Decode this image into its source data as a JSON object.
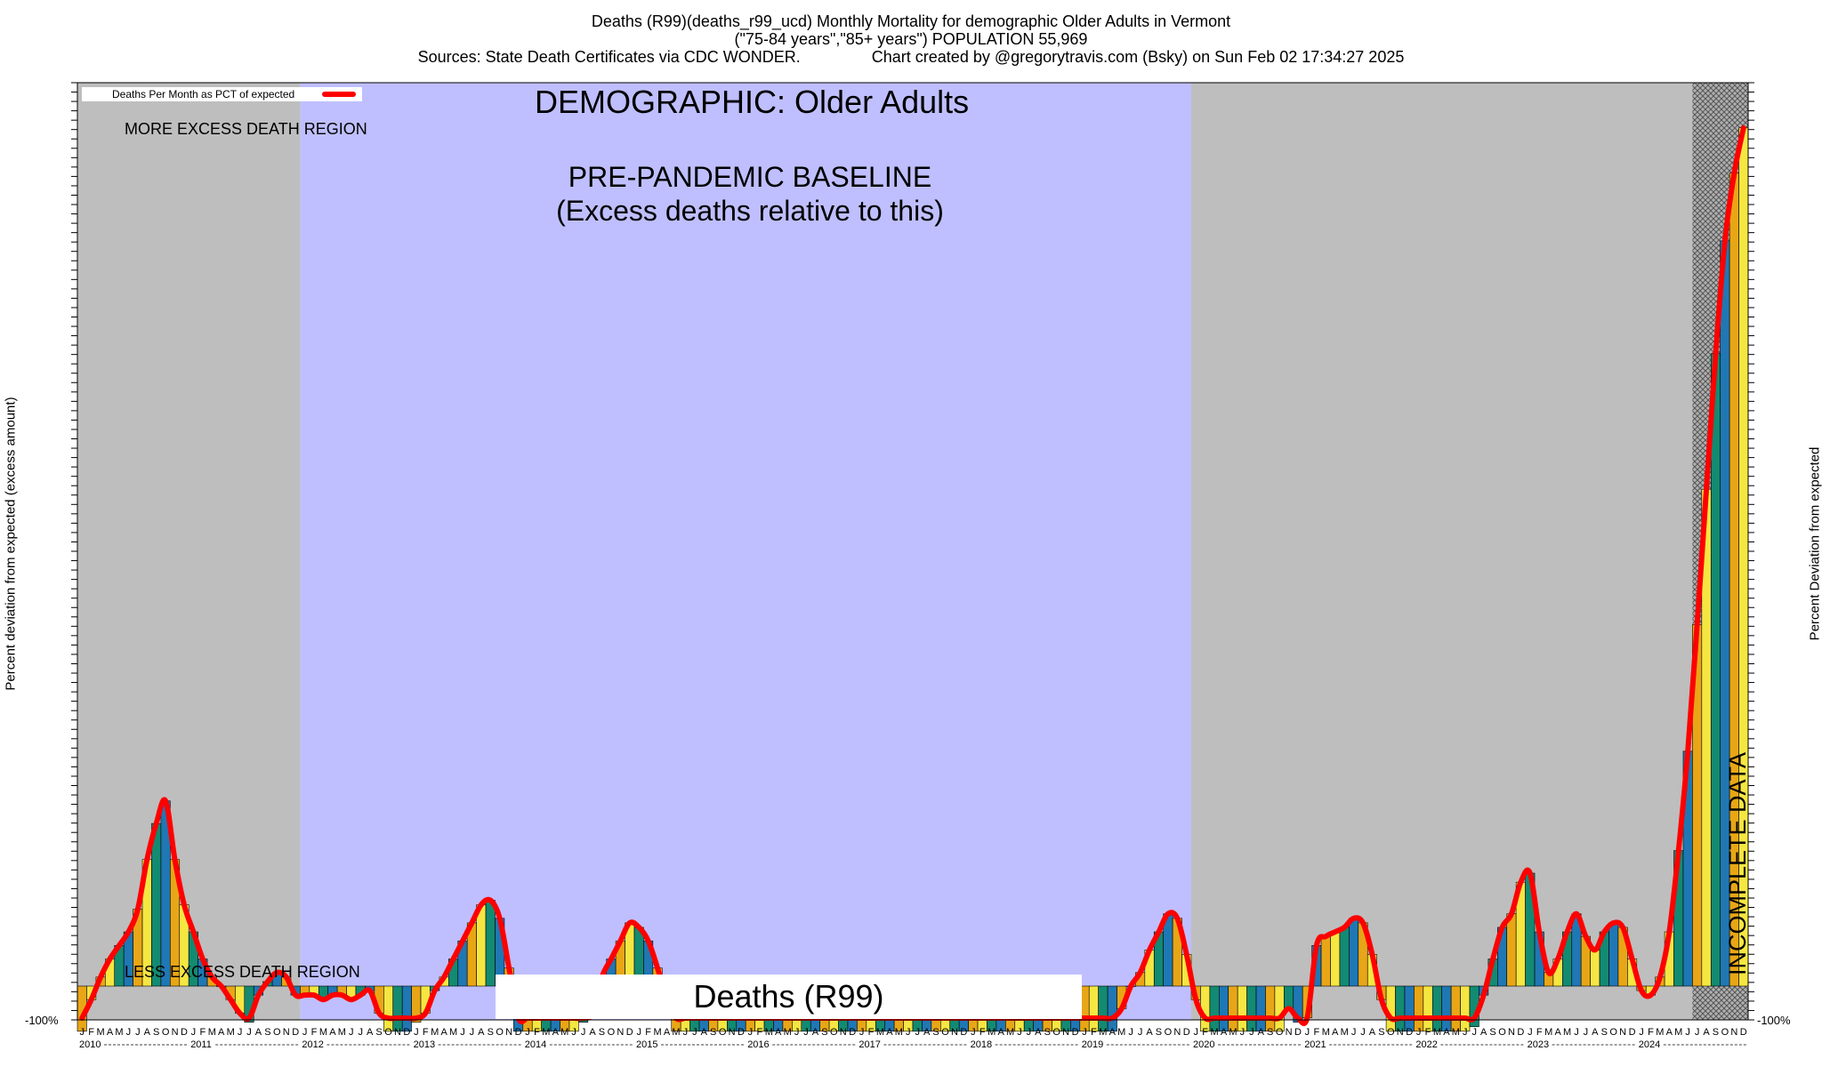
{
  "header": {
    "line1": "Deaths (R99)(deaths_r99_ucd) Monthly Mortality for demographic Older Adults in Vermont",
    "line2": "(\"75-84 years\",\"85+ years\") POPULATION 55,969",
    "line3": "Sources: State Death Certificates via CDC WONDER.                Chart created by @gregorytravis.com (Bsky) on Sun Feb 02 17:34:27 2025"
  },
  "axes": {
    "left_label": "Percent deviation from expected (excess amount)",
    "right_label": "Percent Deviation from expected",
    "bottom_tick": "-100%",
    "right_bottom_tick": "-100%"
  },
  "legend": {
    "label": "Deaths Per Month as PCT of expected",
    "color": "#ff0000"
  },
  "annotations": {
    "demographic": "DEMOGRAPHIC: Older Adults",
    "baseline": "PRE-PANDEMIC BASELINE\n(Excess deaths relative to this)",
    "more_region": "MORE EXCESS DEATH REGION",
    "less_region": "LESS EXCESS DEATH REGION",
    "deaths_label": "Deaths (R99)",
    "incomplete": "INCOMPLETE DATA"
  },
  "colors": {
    "gray_region": "#bebebe",
    "baseline_region": "#bfbfff",
    "line": "#ff0000",
    "bar_palette": [
      "#138a72",
      "#1f77b4",
      "#e8a617",
      "#f5e642"
    ]
  },
  "chart_data": {
    "type": "bar",
    "title": "Deaths (R99)(deaths_r99_ucd) Monthly Mortality for demographic Older Adults in Vermont",
    "ylabel": "Percent deviation from expected (excess amount)",
    "ylim_pct": [
      -100,
      1900
    ],
    "regions": [
      {
        "label": "MORE EXCESS DEATH REGION",
        "from": "2010-01",
        "to": "2011-12",
        "kind": "gray"
      },
      {
        "label": "PRE-PANDEMIC BASELINE",
        "from": "2012-01",
        "to": "2019-12",
        "kind": "baseline"
      },
      {
        "label": "",
        "from": "2020-01",
        "to": "2024-06",
        "kind": "gray"
      },
      {
        "label": "INCOMPLETE DATA",
        "from": "2024-07",
        "to": "2024-12",
        "kind": "hatched"
      }
    ],
    "years": [
      "2010",
      "2011",
      "2012",
      "2013",
      "2014",
      "2015",
      "2016",
      "2017",
      "2018",
      "2019",
      "2020",
      "2021",
      "2022",
      "2023",
      "2024"
    ],
    "month_letters": [
      "J",
      "F",
      "M",
      "A",
      "M",
      "J",
      "J",
      "A",
      "S",
      "O",
      "N",
      "D"
    ],
    "series": [
      {
        "name": "Deaths Per Month as PCT of expected",
        "values_pct": [
          -100,
          -30,
          20,
          60,
          90,
          120,
          170,
          280,
          360,
          410,
          280,
          180,
          120,
          60,
          20,
          0,
          -30,
          -60,
          -80,
          -20,
          10,
          30,
          20,
          -20,
          -20,
          -20,
          -30,
          -20,
          -20,
          -30,
          -20,
          -10,
          -60,
          -100,
          -100,
          -100,
          -80,
          -60,
          -10,
          20,
          60,
          100,
          140,
          180,
          190,
          150,
          40,
          -100,
          -100,
          -100,
          -100,
          -100,
          -100,
          -100,
          -80,
          -60,
          20,
          60,
          100,
          140,
          130,
          100,
          40,
          -30,
          -100,
          -100,
          -100,
          -100,
          -100,
          -100,
          -100,
          -100,
          -100,
          -100,
          -100,
          -100,
          -100,
          -100,
          -100,
          -100,
          -100,
          -100,
          -100,
          -100,
          -100,
          -100,
          -100,
          -100,
          -100,
          -100,
          -100,
          -100,
          -100,
          -100,
          -100,
          -100,
          -100,
          -100,
          -100,
          -100,
          -100,
          -100,
          -100,
          -100,
          -100,
          -100,
          -100,
          -100,
          -100,
          -100,
          -100,
          -100,
          -50,
          0,
          30,
          80,
          120,
          160,
          150,
          70,
          -30,
          -100,
          -100,
          -100,
          -100,
          -100,
          -100,
          -100,
          -100,
          -100,
          -50,
          -80,
          -70,
          90,
          110,
          120,
          130,
          150,
          140,
          70,
          -30,
          -100,
          -100,
          -100,
          -100,
          -100,
          -100,
          -100,
          -100,
          -100,
          -90,
          -20,
          60,
          130,
          160,
          230,
          250,
          120,
          30,
          60,
          120,
          160,
          110,
          80,
          120,
          140,
          130,
          60,
          -10,
          -20,
          20,
          120,
          300,
          520,
          800,
          1100,
          1400,
          1650,
          1800,
          1900
        ]
      }
    ]
  }
}
